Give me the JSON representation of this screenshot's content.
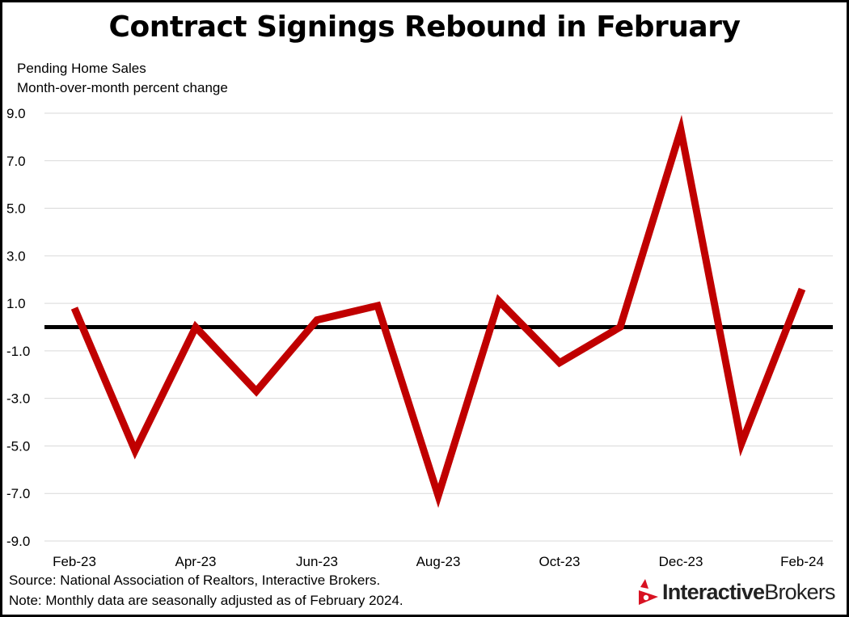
{
  "colors": {
    "series": "#c00000",
    "zero_line": "#000000",
    "grid": "#d9d9d9",
    "logo_red": "#d81222"
  },
  "logo": {
    "part1": "Interactive",
    "part2": "Brokers",
    "icon": "interactive-brokers-logo-icon"
  },
  "chart_data": {
    "type": "line",
    "title": "Contract Signings Rebound in February",
    "subtitle": [
      "Pending Home Sales",
      "Month-over-month percent change"
    ],
    "xlabel": "",
    "ylabel": "",
    "x": [
      "Feb-23",
      "Mar-23",
      "Apr-23",
      "May-23",
      "Jun-23",
      "Jul-23",
      "Aug-23",
      "Sep-23",
      "Oct-23",
      "Nov-23",
      "Dec-23",
      "Jan-24",
      "Feb-24"
    ],
    "x_tick_labels": [
      "Feb-23",
      "Apr-23",
      "Jun-23",
      "Aug-23",
      "Oct-23",
      "Dec-23",
      "Feb-24"
    ],
    "series": [
      {
        "values": [
          0.8,
          -5.2,
          0.0,
          -2.7,
          0.3,
          0.9,
          -7.1,
          1.1,
          -1.5,
          0.0,
          8.3,
          -4.9,
          1.6
        ]
      }
    ],
    "ylim": [
      -9,
      9
    ],
    "y_ticks": [
      9,
      7,
      5,
      3,
      1,
      -1,
      -3,
      -5,
      -7,
      -9
    ],
    "y_tick_labels": [
      "9.0",
      "7.0",
      "5.0",
      "3.0",
      "1.0",
      "-1.0",
      "-3.0",
      "-5.0",
      "-7.0",
      "-9.0"
    ],
    "grid": true,
    "zero_line": true,
    "legend": "none"
  },
  "footer": {
    "source": "Source: National Association of Realtors, Interactive Brokers.",
    "note": "Note: Monthly data are seasonally adjusted as of February 2024."
  }
}
